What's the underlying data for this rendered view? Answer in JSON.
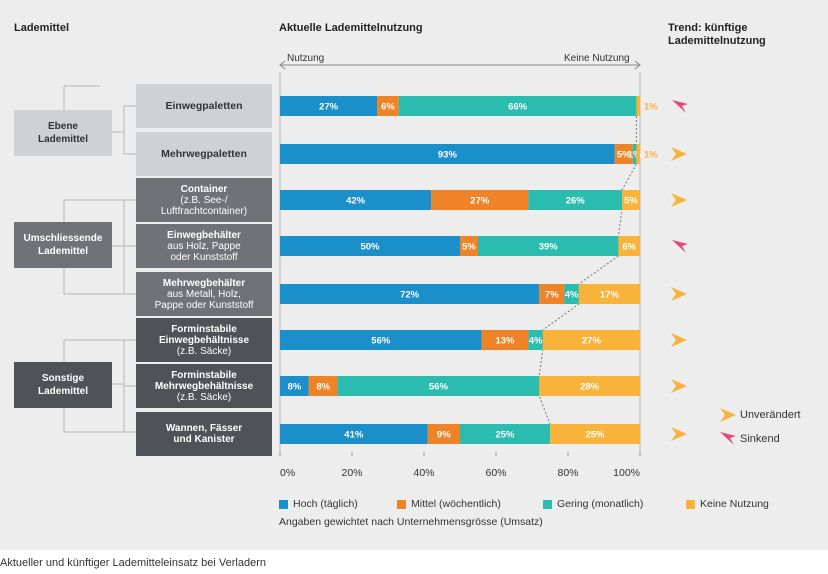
{
  "headers": {
    "col1": "Lademittel",
    "col2": "Aktuelle Lademittelnutzung",
    "col3_line1": "Trend: künftige",
    "col3_line2": "Lademittelnutzung"
  },
  "direction": {
    "left": "Nutzung",
    "right": "Keine Nutzung"
  },
  "groups": [
    {
      "label_line1": "Ebene",
      "label_line2": "Lademittel"
    },
    {
      "label_line1": "Umschliessende",
      "label_line2": "Lademittel"
    },
    {
      "label_line1": "Sonstige",
      "label_line2": "Lademittel"
    }
  ],
  "categories": [
    {
      "line1": "Einwegpaletten",
      "line2": "",
      "line3": ""
    },
    {
      "line1": "Mehrwegpaletten",
      "line2": "",
      "line3": ""
    },
    {
      "line1": "Container",
      "line2": "(z.B. See-/",
      "line3": "Luftfrachtcontainer)"
    },
    {
      "line1": "Einwegbehälter",
      "line2": "aus Holz, Pappe",
      "line3": "oder Kunststoff"
    },
    {
      "line1": "Mehrwegbehälter",
      "line2": "aus Metall, Holz,",
      "line3": "Pappe oder Kunststoff"
    },
    {
      "line1": "Forminstabile",
      "line2": "Einwegbehältnisse",
      "line3": "(z.B. Säcke)"
    },
    {
      "line1": "Forminstabile",
      "line2": "Mehrwegbehältnisse",
      "line3": "(z.B. Säcke)"
    },
    {
      "line1": "Wannen, Fässer",
      "line2": "und Kanister",
      "line3": ""
    }
  ],
  "chart_data": {
    "type": "bar",
    "orientation": "horizontal",
    "stacked": true,
    "categories": [
      "Einwegpaletten",
      "Mehrwegpaletten",
      "Container",
      "Einwegbehälter",
      "Mehrwegbehälter",
      "Forminstabile Einwegbehältnisse",
      "Forminstabile Mehrwegbehältnisse",
      "Wannen, Fässer und Kanister"
    ],
    "series": [
      {
        "name": "Hoch (täglich)",
        "color": "#1b8fc9",
        "values": [
          27,
          93,
          42,
          50,
          72,
          56,
          8,
          41
        ]
      },
      {
        "name": "Mittel (wöchentlich)",
        "color": "#ee8327",
        "values": [
          6,
          5,
          27,
          5,
          7,
          13,
          8,
          9
        ]
      },
      {
        "name": "Gering (monatlich)",
        "color": "#2bbcb0",
        "values": [
          66,
          1,
          26,
          39,
          4,
          4,
          56,
          25
        ]
      },
      {
        "name": "Keine Nutzung",
        "color": "#f9b33a",
        "values": [
          1,
          1,
          5,
          6,
          17,
          27,
          28,
          25
        ]
      }
    ],
    "value_labels": [
      [
        "27%",
        "6%",
        "66%",
        "1%"
      ],
      [
        "93%",
        "5%",
        "1%",
        "1%"
      ],
      [
        "42%",
        "27%",
        "26%",
        "5%"
      ],
      [
        "50%",
        "5%",
        "39%",
        "6%"
      ],
      [
        "72%",
        "7%",
        "4%",
        "17%"
      ],
      [
        "56%",
        "13%",
        "4%",
        "27%"
      ],
      [
        "8%",
        "8%",
        "56%",
        "28%"
      ],
      [
        "41%",
        "9%",
        "25%",
        "25%"
      ]
    ],
    "xlim": [
      0,
      100
    ],
    "xticks": [
      "0%",
      "20%",
      "40%",
      "60%",
      "80%",
      "100%"
    ],
    "trend": [
      "Sinkend",
      "Unverändert",
      "Unverändert",
      "Sinkend",
      "Unverändert",
      "Unverändert",
      "Unverändert",
      "Unverändert"
    ],
    "note": "Angaben gewichtet nach Unternehmensgrösse (Umsatz)"
  },
  "trend_legend": [
    {
      "label": "Unverändert",
      "color": "#f9b33a",
      "icon": "arrow-right-icon"
    },
    {
      "label": "Sinkend",
      "color": "#e2477f",
      "icon": "arrow-down-left-icon"
    }
  ],
  "caption": "Aktueller und künftiger Lademitteleinsatz bei Verladern"
}
